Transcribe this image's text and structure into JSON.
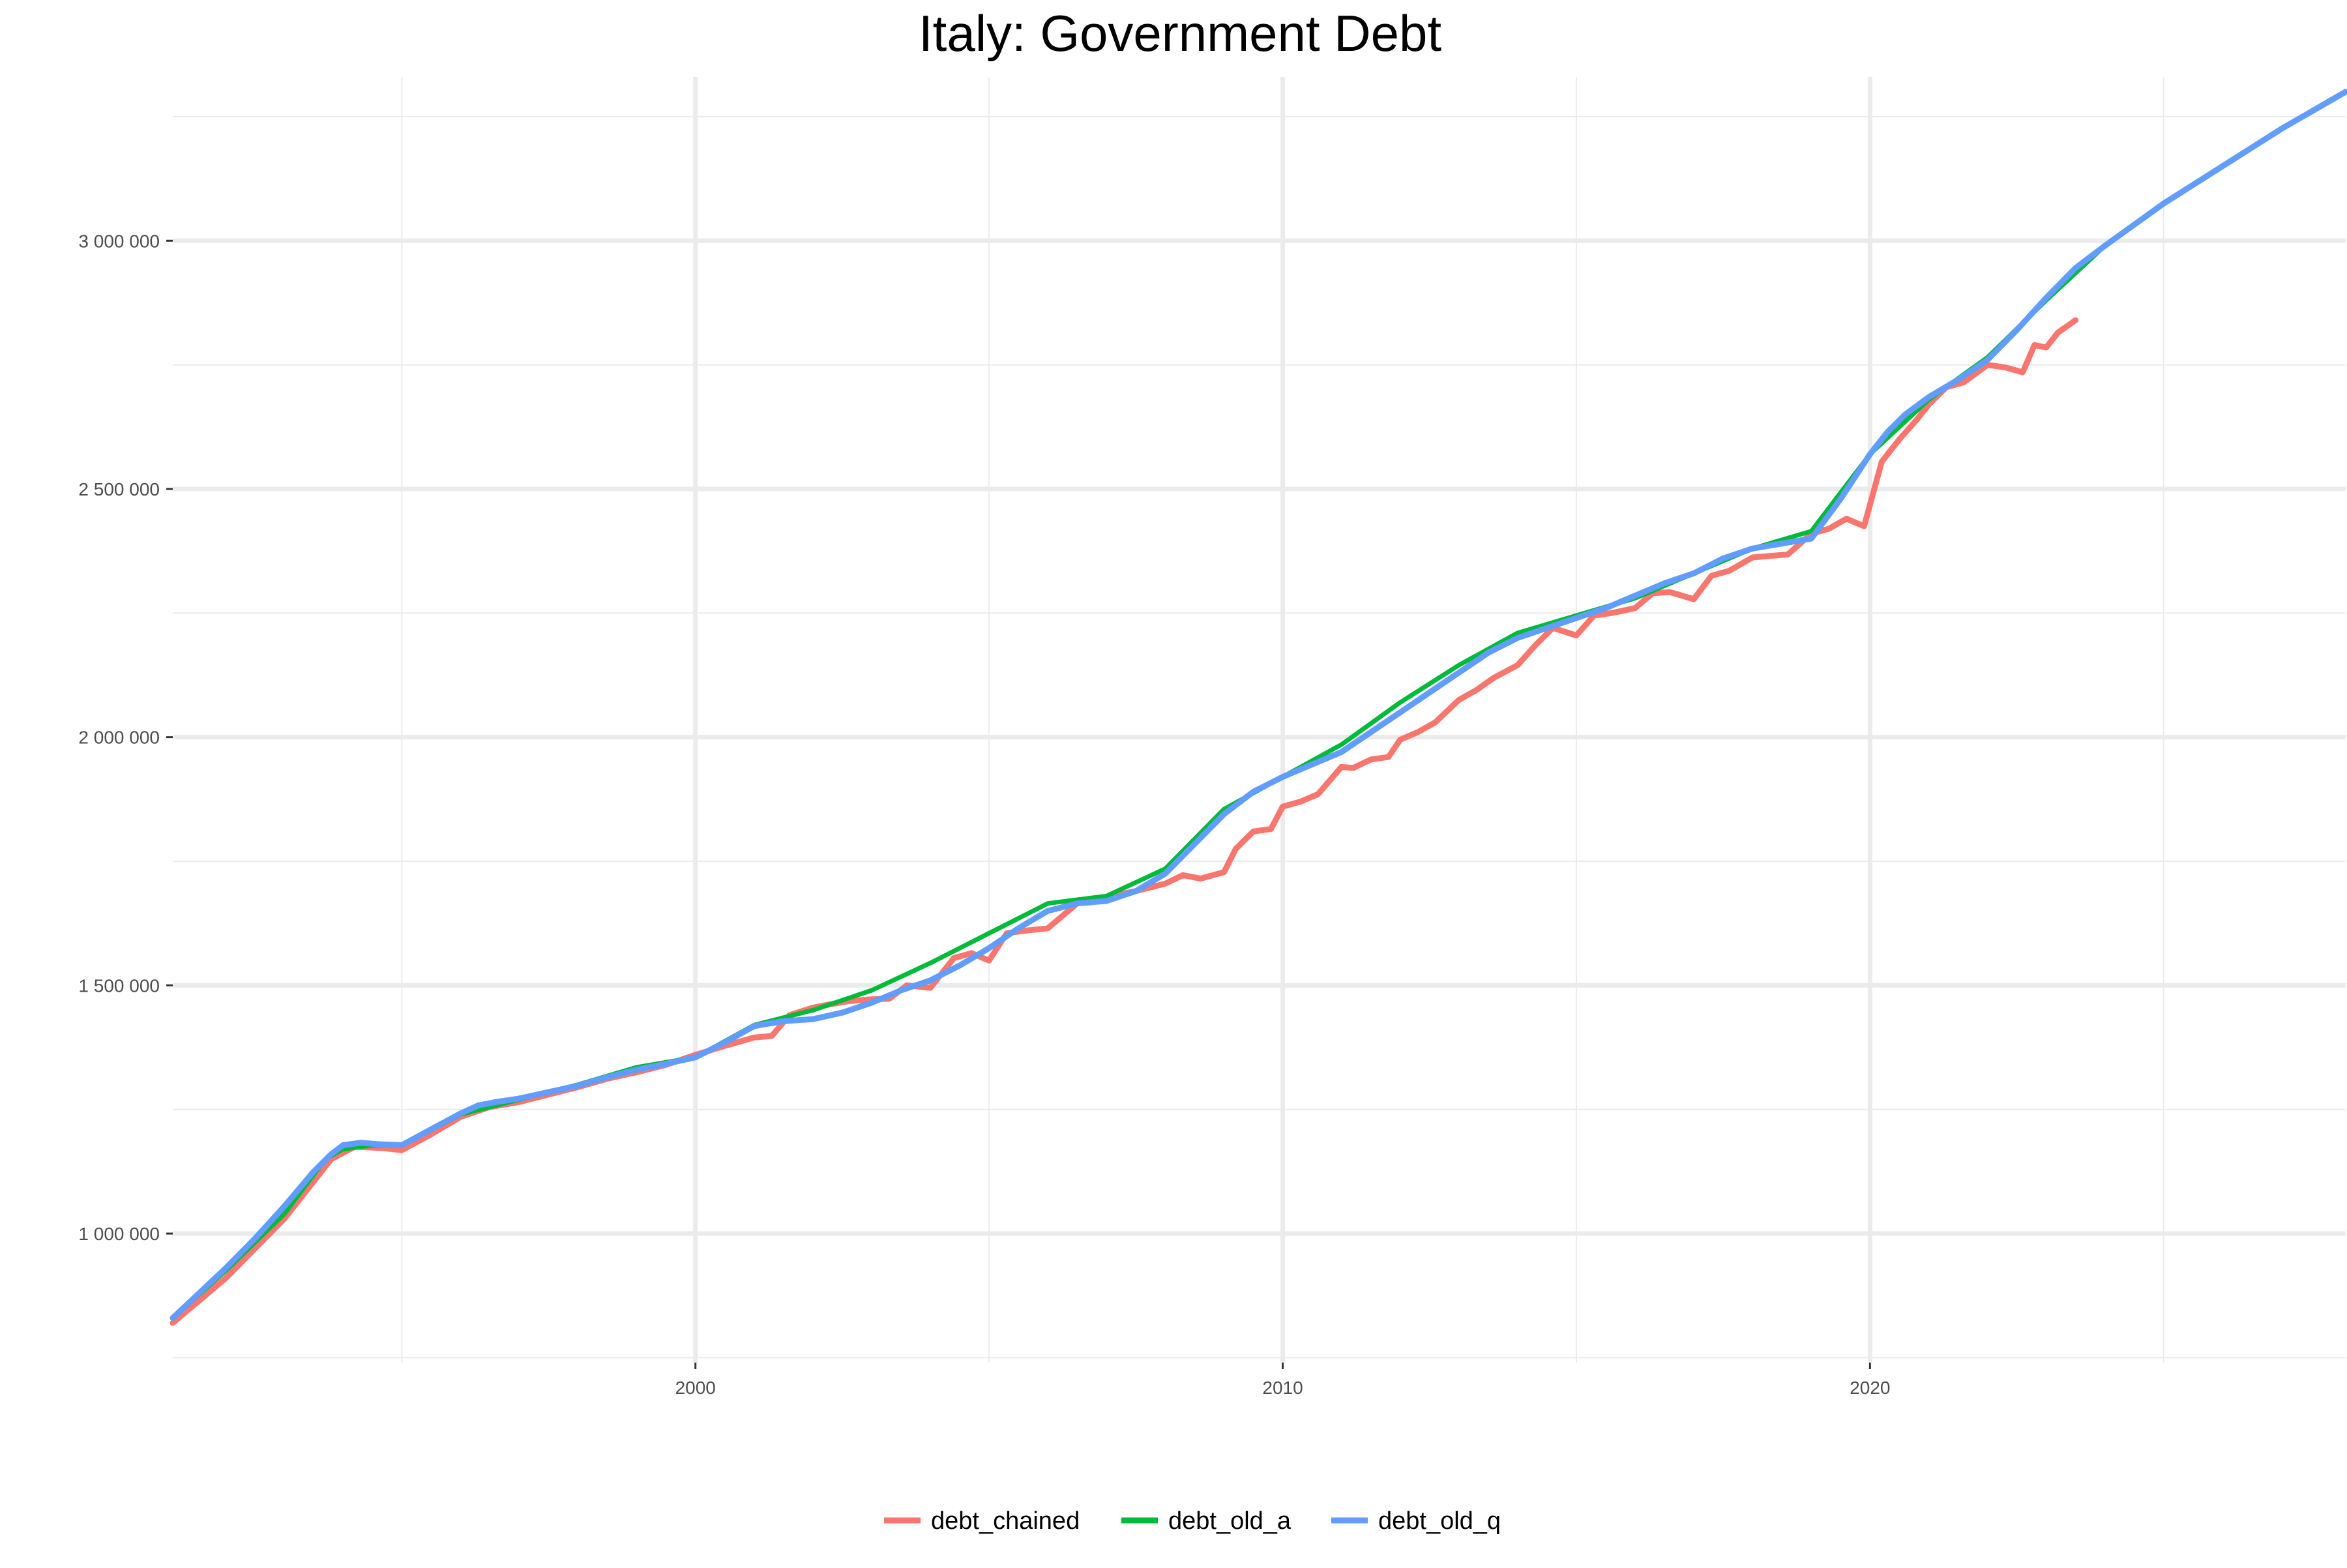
{
  "chart_data": {
    "type": "line",
    "title": "Italy: Government Debt",
    "xlabel": "",
    "ylabel": "",
    "xlim": [
      1991.1,
      2028.1
    ],
    "ylim": [
      740000,
      3330000
    ],
    "x_ticks": [
      {
        "value": 2000,
        "label": "2000"
      },
      {
        "value": 2010,
        "label": "2010"
      },
      {
        "value": 2020,
        "label": "2020"
      }
    ],
    "x_minor_ticks": [
      1995,
      2005,
      2015,
      2025
    ],
    "y_ticks": [
      {
        "value": 1000000,
        "label": "1 000 000"
      },
      {
        "value": 1500000,
        "label": "1 500 000"
      },
      {
        "value": 2000000,
        "label": "2 000 000"
      },
      {
        "value": 2500000,
        "label": "2 500 000"
      },
      {
        "value": 3000000,
        "label": "3 000 000"
      }
    ],
    "y_minor_ticks": [
      750000,
      1250000,
      1750000,
      2250000,
      2750000,
      3250000
    ],
    "grid": true,
    "legend_position": "bottom",
    "series": [
      {
        "name": "debt_chained",
        "color": "#F8766D",
        "x": [
          1991.1,
          1992.0,
          1993.0,
          1993.8,
          1994.2,
          1994.7,
          1995.0,
          1995.5,
          1996.0,
          1996.5,
          1997.0,
          1997.5,
          1998.0,
          1998.5,
          1999.0,
          1999.5,
          2000.0,
          2000.5,
          2001.0,
          2001.3,
          2001.6,
          2002.0,
          2002.3,
          2002.6,
          2003.0,
          2003.3,
          2003.6,
          2004.0,
          2004.4,
          2004.7,
          2005.0,
          2005.3,
          2005.6,
          2006.0,
          2006.5,
          2007.0,
          2007.5,
          2008.0,
          2008.3,
          2008.6,
          2009.0,
          2009.2,
          2009.5,
          2009.8,
          2010.0,
          2010.3,
          2010.6,
          2011.0,
          2011.2,
          2011.5,
          2011.8,
          2012.0,
          2012.3,
          2012.6,
          2013.0,
          2013.3,
          2013.6,
          2014.0,
          2014.3,
          2014.6,
          2015.0,
          2015.3,
          2015.6,
          2016.0,
          2016.3,
          2016.6,
          2017.0,
          2017.3,
          2017.6,
          2018.0,
          2018.3,
          2018.6,
          2019.0,
          2019.3,
          2019.6,
          2019.9,
          2020.2,
          2020.5,
          2020.8,
          2021.0,
          2021.3,
          2021.6,
          2022.0,
          2022.3,
          2022.6,
          2022.8,
          2023.0,
          2023.2,
          2023.5
        ],
        "values": [
          820000,
          910000,
          1030000,
          1150000,
          1175000,
          1172000,
          1168000,
          1200000,
          1235000,
          1255000,
          1265000,
          1280000,
          1295000,
          1312000,
          1325000,
          1340000,
          1360000,
          1378000,
          1395000,
          1398000,
          1440000,
          1455000,
          1462000,
          1468000,
          1472000,
          1473000,
          1500000,
          1495000,
          1555000,
          1565000,
          1550000,
          1605000,
          1610000,
          1615000,
          1665000,
          1678000,
          1690000,
          1705000,
          1722000,
          1715000,
          1728000,
          1775000,
          1810000,
          1815000,
          1860000,
          1870000,
          1885000,
          1940000,
          1938000,
          1955000,
          1960000,
          1995000,
          2010000,
          2030000,
          2075000,
          2095000,
          2120000,
          2145000,
          2185000,
          2220000,
          2205000,
          2245000,
          2250000,
          2260000,
          2290000,
          2292000,
          2278000,
          2325000,
          2335000,
          2362000,
          2365000,
          2368000,
          2410000,
          2420000,
          2440000,
          2425000,
          2555000,
          2600000,
          2640000,
          2670000,
          2705000,
          2715000,
          2750000,
          2745000,
          2735000,
          2790000,
          2785000,
          2815000,
          2840000
        ]
      },
      {
        "name": "debt_old_a",
        "color": "#00BA38",
        "x": [
          1991.1,
          1992.0,
          1993.0,
          1993.7,
          1994.0,
          1994.5,
          1995.0,
          1996.0,
          1997.0,
          1998.0,
          1999.0,
          2000.0,
          2001.0,
          2002.0,
          2003.0,
          2004.0,
          2005.0,
          2006.0,
          2007.0,
          2008.0,
          2009.0,
          2010.0,
          2011.0,
          2012.0,
          2013.0,
          2014.0,
          2015.0,
          2016.0,
          2017.0,
          2018.0,
          2019.0,
          2020.0,
          2021.0,
          2022.0,
          2023.0,
          2024.0,
          2025.0,
          2026.0,
          2027.0,
          2028.1
        ],
        "values": [
          830000,
          925000,
          1040000,
          1150000,
          1170000,
          1178000,
          1178000,
          1240000,
          1270000,
          1300000,
          1335000,
          1355000,
          1420000,
          1450000,
          1490000,
          1545000,
          1605000,
          1665000,
          1680000,
          1735000,
          1855000,
          1920000,
          1985000,
          2070000,
          2145000,
          2210000,
          2245000,
          2280000,
          2330000,
          2380000,
          2415000,
          2570000,
          2680000,
          2765000,
          2880000,
          2990000,
          3075000,
          3150000,
          3225000,
          3300000
        ]
      },
      {
        "name": "debt_old_q",
        "color": "#619CFF",
        "x": [
          1991.1,
          1992.0,
          1992.5,
          1993.0,
          1993.5,
          1993.8,
          1994.0,
          1994.3,
          1994.6,
          1995.0,
          1995.5,
          1996.0,
          1996.3,
          1996.6,
          1997.0,
          1997.5,
          1998.0,
          1998.5,
          1999.0,
          1999.5,
          2000.0,
          2000.5,
          2001.0,
          2001.5,
          2002.0,
          2002.5,
          2003.0,
          2003.5,
          2004.0,
          2004.5,
          2005.0,
          2005.5,
          2006.0,
          2006.5,
          2007.0,
          2007.5,
          2008.0,
          2008.5,
          2009.0,
          2009.5,
          2010.0,
          2010.5,
          2011.0,
          2011.5,
          2012.0,
          2012.5,
          2013.0,
          2013.5,
          2014.0,
          2014.5,
          2015.0,
          2015.5,
          2016.0,
          2016.5,
          2017.0,
          2017.5,
          2018.0,
          2018.5,
          2019.0,
          2019.5,
          2020.0,
          2020.3,
          2020.6,
          2021.0,
          2021.5,
          2022.0,
          2022.5,
          2023.0,
          2023.5,
          2024.0,
          2025.0,
          2026.0,
          2027.0,
          2028.1
        ],
        "values": [
          830000,
          930000,
          990000,
          1055000,
          1125000,
          1160000,
          1178000,
          1183000,
          1180000,
          1178000,
          1210000,
          1242000,
          1258000,
          1265000,
          1272000,
          1285000,
          1298000,
          1315000,
          1330000,
          1342000,
          1355000,
          1385000,
          1418000,
          1428000,
          1432000,
          1445000,
          1465000,
          1490000,
          1510000,
          1540000,
          1575000,
          1615000,
          1650000,
          1665000,
          1670000,
          1690000,
          1725000,
          1785000,
          1845000,
          1890000,
          1920000,
          1945000,
          1970000,
          2010000,
          2050000,
          2090000,
          2130000,
          2170000,
          2200000,
          2220000,
          2240000,
          2260000,
          2285000,
          2310000,
          2330000,
          2360000,
          2380000,
          2390000,
          2400000,
          2480000,
          2570000,
          2615000,
          2650000,
          2685000,
          2720000,
          2760000,
          2820000,
          2885000,
          2945000,
          2990000,
          3075000,
          3150000,
          3225000,
          3300000
        ]
      }
    ]
  }
}
